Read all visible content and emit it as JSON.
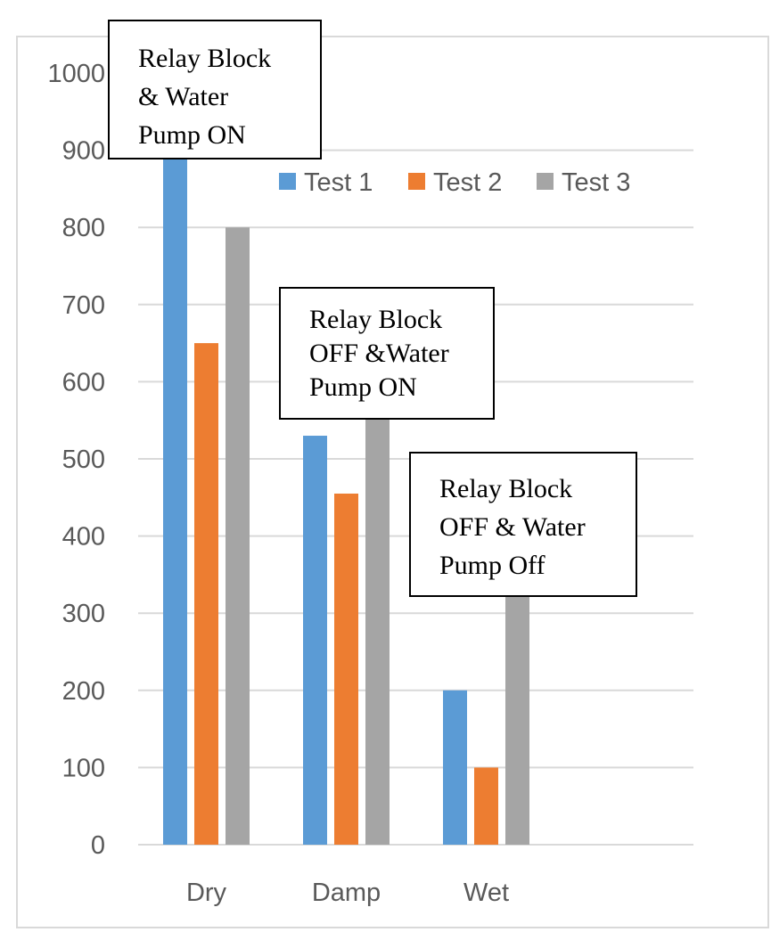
{
  "chart_data": {
    "type": "bar",
    "categories": [
      "Dry",
      "Damp",
      "Wet"
    ],
    "series": [
      {
        "name": "Test 1",
        "color": "#5b9bd5",
        "values": [
          900,
          530,
          200
        ]
      },
      {
        "name": "Test 2",
        "color": "#ed7d31",
        "values": [
          650,
          455,
          100
        ]
      },
      {
        "name": "Test 3",
        "color": "#a5a5a5",
        "values": [
          800,
          560,
          330
        ]
      }
    ],
    "yticks": [
      "0",
      "100",
      "200",
      "300",
      "400",
      "500",
      "600",
      "700",
      "800",
      "900",
      "1000"
    ],
    "ylim": [
      0,
      1000
    ],
    "grid": true,
    "legend_position": "top-right",
    "annotations": [
      {
        "text": "Relay Block\n& Water\nPump ON",
        "category": "Dry"
      },
      {
        "text": "Relay Block\nOFF &Water\nPump ON",
        "category": "Damp"
      },
      {
        "text": "Relay Block\nOFF & Water\nPump Off",
        "category": "Wet"
      }
    ]
  }
}
